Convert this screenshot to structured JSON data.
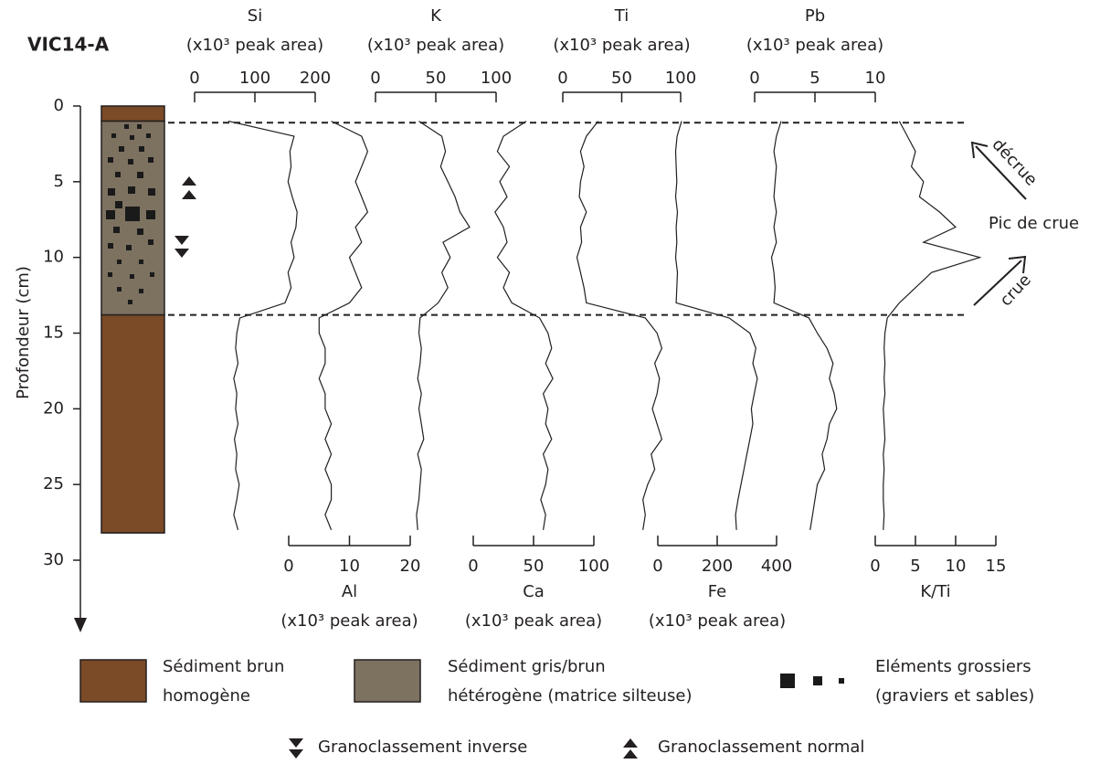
{
  "chart_data": {
    "type": "multi-profile",
    "title": "VIC14-A",
    "y_label": "Profondeur (cm)",
    "ylim": [
      0,
      30
    ],
    "yticks": [
      0,
      5,
      10,
      15,
      20,
      25,
      30
    ],
    "depths": [
      1,
      2,
      3,
      4,
      5,
      6,
      7,
      8,
      9,
      10,
      11,
      12,
      13,
      14,
      15,
      16,
      17,
      18,
      19,
      20,
      21,
      22,
      23,
      24,
      25,
      26,
      27,
      28
    ],
    "series": [
      {
        "name": "Si",
        "unit": "(x10³ peak area)",
        "axis": "top",
        "color": "#231f20",
        "xlim": [
          0,
          200
        ],
        "xticks": [
          0,
          100,
          200
        ],
        "values": [
          56,
          165,
          158,
          160,
          155,
          162,
          170,
          168,
          160,
          165,
          155,
          160,
          150,
          75,
          70,
          68,
          72,
          65,
          70,
          68,
          72,
          66,
          70,
          68,
          74,
          70,
          65,
          72
        ]
      },
      {
        "name": "Al",
        "unit": "(x10³ peak area)",
        "axis": "bottom",
        "color": "#231f20",
        "xlim": [
          0,
          20
        ],
        "xticks": [
          0,
          10,
          20
        ],
        "values": [
          7,
          12,
          13,
          12,
          11,
          12,
          13,
          11,
          12,
          10,
          11,
          12,
          10,
          5,
          5,
          6,
          6,
          5,
          6,
          6,
          7,
          6,
          7,
          6,
          7,
          7,
          6,
          7
        ]
      },
      {
        "name": "K",
        "unit": "(x10³ peak area)",
        "axis": "top",
        "color": "#231f20",
        "xlim": [
          0,
          100
        ],
        "xticks": [
          0,
          50,
          100
        ],
        "values": [
          36,
          55,
          58,
          54,
          60,
          66,
          70,
          78,
          56,
          62,
          55,
          60,
          52,
          37,
          36,
          38,
          37,
          35,
          38,
          36,
          38,
          40,
          35,
          38,
          37,
          36,
          34,
          35
        ]
      },
      {
        "name": "Ca",
        "unit": "(x10³ peak area)",
        "axis": "bottom",
        "color": "#231f20",
        "xlim": [
          0,
          100
        ],
        "xticks": [
          0,
          50,
          100
        ],
        "values": [
          44,
          25,
          20,
          30,
          22,
          28,
          18,
          25,
          28,
          20,
          30,
          25,
          32,
          55,
          62,
          65,
          60,
          66,
          58,
          62,
          60,
          65,
          58,
          62,
          60,
          56,
          60,
          58
        ]
      },
      {
        "name": "Ti",
        "unit": "(x10³ peak area)",
        "axis": "top",
        "color": "#231f20",
        "xlim": [
          0,
          100
        ],
        "xticks": [
          0,
          50,
          100
        ],
        "values": [
          30,
          20,
          15,
          18,
          15,
          14,
          20,
          15,
          16,
          12,
          15,
          18,
          20,
          70,
          80,
          84,
          78,
          82,
          80,
          76,
          80,
          84,
          75,
          78,
          72,
          68,
          70,
          68
        ]
      },
      {
        "name": "Fe",
        "unit": "(x10³ peak area)",
        "axis": "bottom",
        "color": "#231f20",
        "xlim": [
          0,
          400
        ],
        "xticks": [
          0,
          200,
          400
        ],
        "values": [
          80,
          65,
          60,
          62,
          64,
          60,
          66,
          62,
          64,
          60,
          66,
          64,
          62,
          240,
          310,
          330,
          320,
          335,
          325,
          315,
          320,
          310,
          300,
          290,
          280,
          270,
          262,
          265
        ]
      },
      {
        "name": "Pb",
        "unit": "(x10³ peak area)",
        "axis": "top",
        "color": "#231f20",
        "xlim": [
          0,
          10
        ],
        "xticks": [
          0,
          5,
          10
        ],
        "values": [
          2.2,
          1.8,
          1.6,
          1.8,
          1.7,
          1.6,
          1.8,
          1.6,
          1.8,
          1.4,
          1.6,
          1.7,
          1.6,
          4.5,
          5.2,
          6.0,
          6.5,
          6.2,
          6.6,
          6.8,
          6.2,
          6.0,
          5.6,
          5.8,
          5.2,
          5.0,
          4.8,
          4.6
        ]
      },
      {
        "name": "K/Ti",
        "axis": "bottom",
        "color": "#231f20",
        "xlim": [
          0,
          15
        ],
        "xticks": [
          0,
          5,
          10,
          15
        ],
        "values": [
          3,
          4,
          5,
          4.5,
          6,
          5.5,
          8,
          10,
          6,
          13,
          7,
          5,
          3,
          1.5,
          1.2,
          1.1,
          1.2,
          1.1,
          1.2,
          1.0,
          1.1,
          1.2,
          1.0,
          1.1,
          1.0,
          1.0,
          1.1,
          1.0
        ]
      }
    ],
    "core_layers": [
      {
        "top": 0,
        "base": 1,
        "color": "#7b4a26"
      },
      {
        "top": 1,
        "base": 13.8,
        "color": "#7d7160"
      },
      {
        "top": 13.8,
        "base": 28.2,
        "color": "#7b4a26"
      }
    ],
    "flood_boundaries": [
      1.1,
      13.8
    ],
    "annotations": {
      "peak": "Pic de crue",
      "falling": "décrue",
      "rising": "crue"
    },
    "legend": {
      "brown": [
        "Sédiment brun",
        "homogène"
      ],
      "grey": [
        "Sédiment gris/brun",
        "hétérogène (matrice silteuse)"
      ],
      "coarse": [
        "Eléments grossiers",
        "(graviers et sables)"
      ],
      "inverse": "Granoclassement inverse",
      "normal": "Granoclassement normal"
    }
  }
}
